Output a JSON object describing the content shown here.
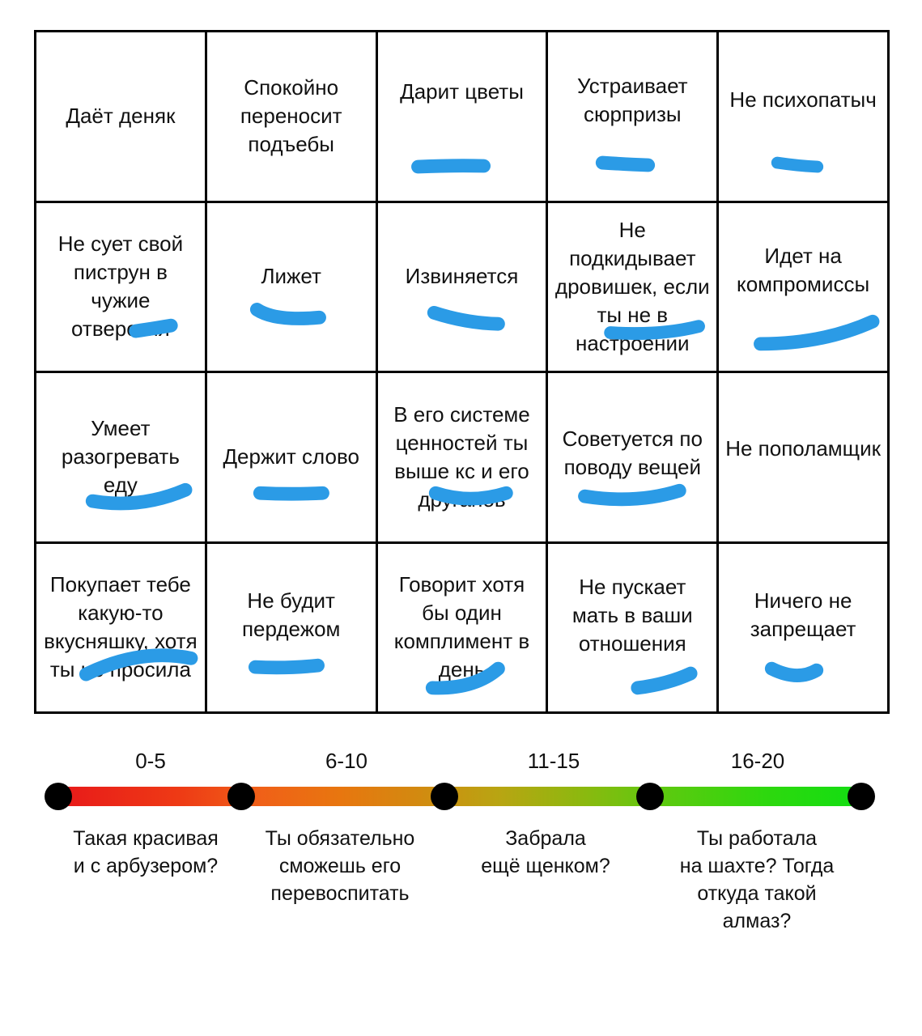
{
  "grid": {
    "rows": [
      [
        "Даёт деняк",
        "Спокойно переносит подъебы",
        "Дарит цветы",
        "Устраивает сюрпризы",
        "Не психопатыч"
      ],
      [
        "Не сует свой пиструн в чужие отверстия",
        "Лижет",
        "Извиняется",
        "Не подкидывает дровишек, если ты не в настроении",
        "Идет на компромиссы"
      ],
      [
        "Умеет разогревать еду",
        "Держит слово",
        "В его системе ценностей ты выше кс и его друганов",
        "Советуется по поводу вещей",
        "Не пополамщик"
      ],
      [
        "Покупает тебе какую-то вкусняшку, хотя ты не просила",
        "Не будит пердежом",
        "Говорит хотя бы один комплимент в день",
        "Не пускает мать в ваши отношения",
        "Ничего не запрещает"
      ]
    ],
    "marked": [
      [
        false,
        false,
        true,
        true,
        true
      ],
      [
        true,
        true,
        true,
        true,
        true
      ],
      [
        true,
        true,
        true,
        true,
        false
      ],
      [
        true,
        true,
        true,
        true,
        true
      ]
    ]
  },
  "scale": {
    "ranges": [
      "0-5",
      "6-10",
      "11-15",
      "16-20"
    ],
    "descriptions": [
      "Такая красивая\nи с арбузером?",
      "Ты обязательно\nсможешь его\nперевоспитать",
      "Забрала\nещё щенком?",
      "Ты работала\nна шахте? Тогда\nоткуда такой\nалмаз?"
    ]
  },
  "colors": {
    "marker": "#2b9be6",
    "grid_line": "#000000",
    "scale_start": "#e8191a",
    "scale_end": "#12de12"
  }
}
